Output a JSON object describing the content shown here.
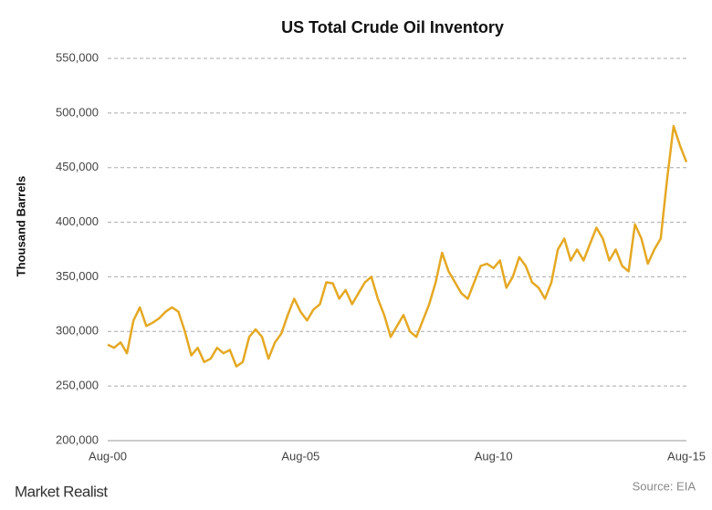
{
  "chart_data": {
    "type": "line",
    "title": "US Total Crude Oil Inventory",
    "y_label": "Thousand Barrels",
    "source": "Source: EIA",
    "brand": "Market Realist",
    "x": [
      "2000-08",
      "2000-10",
      "2000-12",
      "2001-02",
      "2001-04",
      "2001-06",
      "2001-08",
      "2001-10",
      "2001-12",
      "2002-02",
      "2002-04",
      "2002-06",
      "2002-08",
      "2002-10",
      "2002-12",
      "2003-02",
      "2003-04",
      "2003-06",
      "2003-08",
      "2003-10",
      "2003-12",
      "2004-02",
      "2004-04",
      "2004-06",
      "2004-08",
      "2004-10",
      "2004-12",
      "2005-02",
      "2005-04",
      "2005-06",
      "2005-08",
      "2005-10",
      "2005-12",
      "2006-02",
      "2006-04",
      "2006-06",
      "2006-08",
      "2006-10",
      "2006-12",
      "2007-02",
      "2007-04",
      "2007-06",
      "2007-08",
      "2007-10",
      "2007-12",
      "2008-02",
      "2008-04",
      "2008-06",
      "2008-08",
      "2008-10",
      "2008-12",
      "2009-02",
      "2009-04",
      "2009-06",
      "2009-08",
      "2009-10",
      "2009-12",
      "2010-02",
      "2010-04",
      "2010-06",
      "2010-08",
      "2010-10",
      "2010-12",
      "2011-02",
      "2011-04",
      "2011-06",
      "2011-08",
      "2011-10",
      "2011-12",
      "2012-02",
      "2012-04",
      "2012-06",
      "2012-08",
      "2012-10",
      "2012-12",
      "2013-02",
      "2013-04",
      "2013-06",
      "2013-08",
      "2013-10",
      "2013-12",
      "2014-02",
      "2014-04",
      "2014-06",
      "2014-08",
      "2014-10",
      "2014-12",
      "2015-02",
      "2015-04",
      "2015-06",
      "2015-08"
    ],
    "series": [
      {
        "name": "US Total Crude Oil Inventory",
        "color": "#e5a823",
        "values": [
          288000,
          285000,
          290000,
          280000,
          310000,
          322000,
          305000,
          308000,
          312000,
          318000,
          322000,
          318000,
          300000,
          278000,
          285000,
          272000,
          275000,
          285000,
          280000,
          283000,
          268000,
          272000,
          295000,
          302000,
          295000,
          275000,
          290000,
          298000,
          315000,
          330000,
          318000,
          310000,
          320000,
          325000,
          345000,
          344000,
          330000,
          338000,
          325000,
          335000,
          345000,
          350000,
          330000,
          315000,
          295000,
          305000,
          315000,
          300000,
          295000,
          310000,
          325000,
          345000,
          372000,
          355000,
          345000,
          335000,
          330000,
          345000,
          360000,
          362000,
          358000,
          365000,
          340000,
          350000,
          368000,
          360000,
          345000,
          340000,
          330000,
          345000,
          375000,
          385000,
          365000,
          375000,
          365000,
          380000,
          395000,
          385000,
          365000,
          375000,
          360000,
          355000,
          398000,
          385000,
          362000,
          375000,
          385000,
          440000,
          488000,
          470000,
          455000
        ]
      }
    ],
    "xlim": [
      "2000-08",
      "2015-08"
    ],
    "xticks": [
      {
        "value": "2000-08",
        "label": "Aug-00"
      },
      {
        "value": "2005-08",
        "label": "Aug-05"
      },
      {
        "value": "2010-08",
        "label": "Aug-10"
      },
      {
        "value": "2015-08",
        "label": "Aug-15"
      }
    ],
    "ylim": [
      200000,
      550000
    ],
    "yticks": [
      {
        "value": 200000,
        "label": "200,000"
      },
      {
        "value": 250000,
        "label": "250,000"
      },
      {
        "value": 300000,
        "label": "300,000"
      },
      {
        "value": 350000,
        "label": "350,000"
      },
      {
        "value": 400000,
        "label": "400,000"
      },
      {
        "value": 450000,
        "label": "450,000"
      },
      {
        "value": 500000,
        "label": "500,000"
      },
      {
        "value": 550000,
        "label": "550,000"
      }
    ],
    "grid": true
  }
}
